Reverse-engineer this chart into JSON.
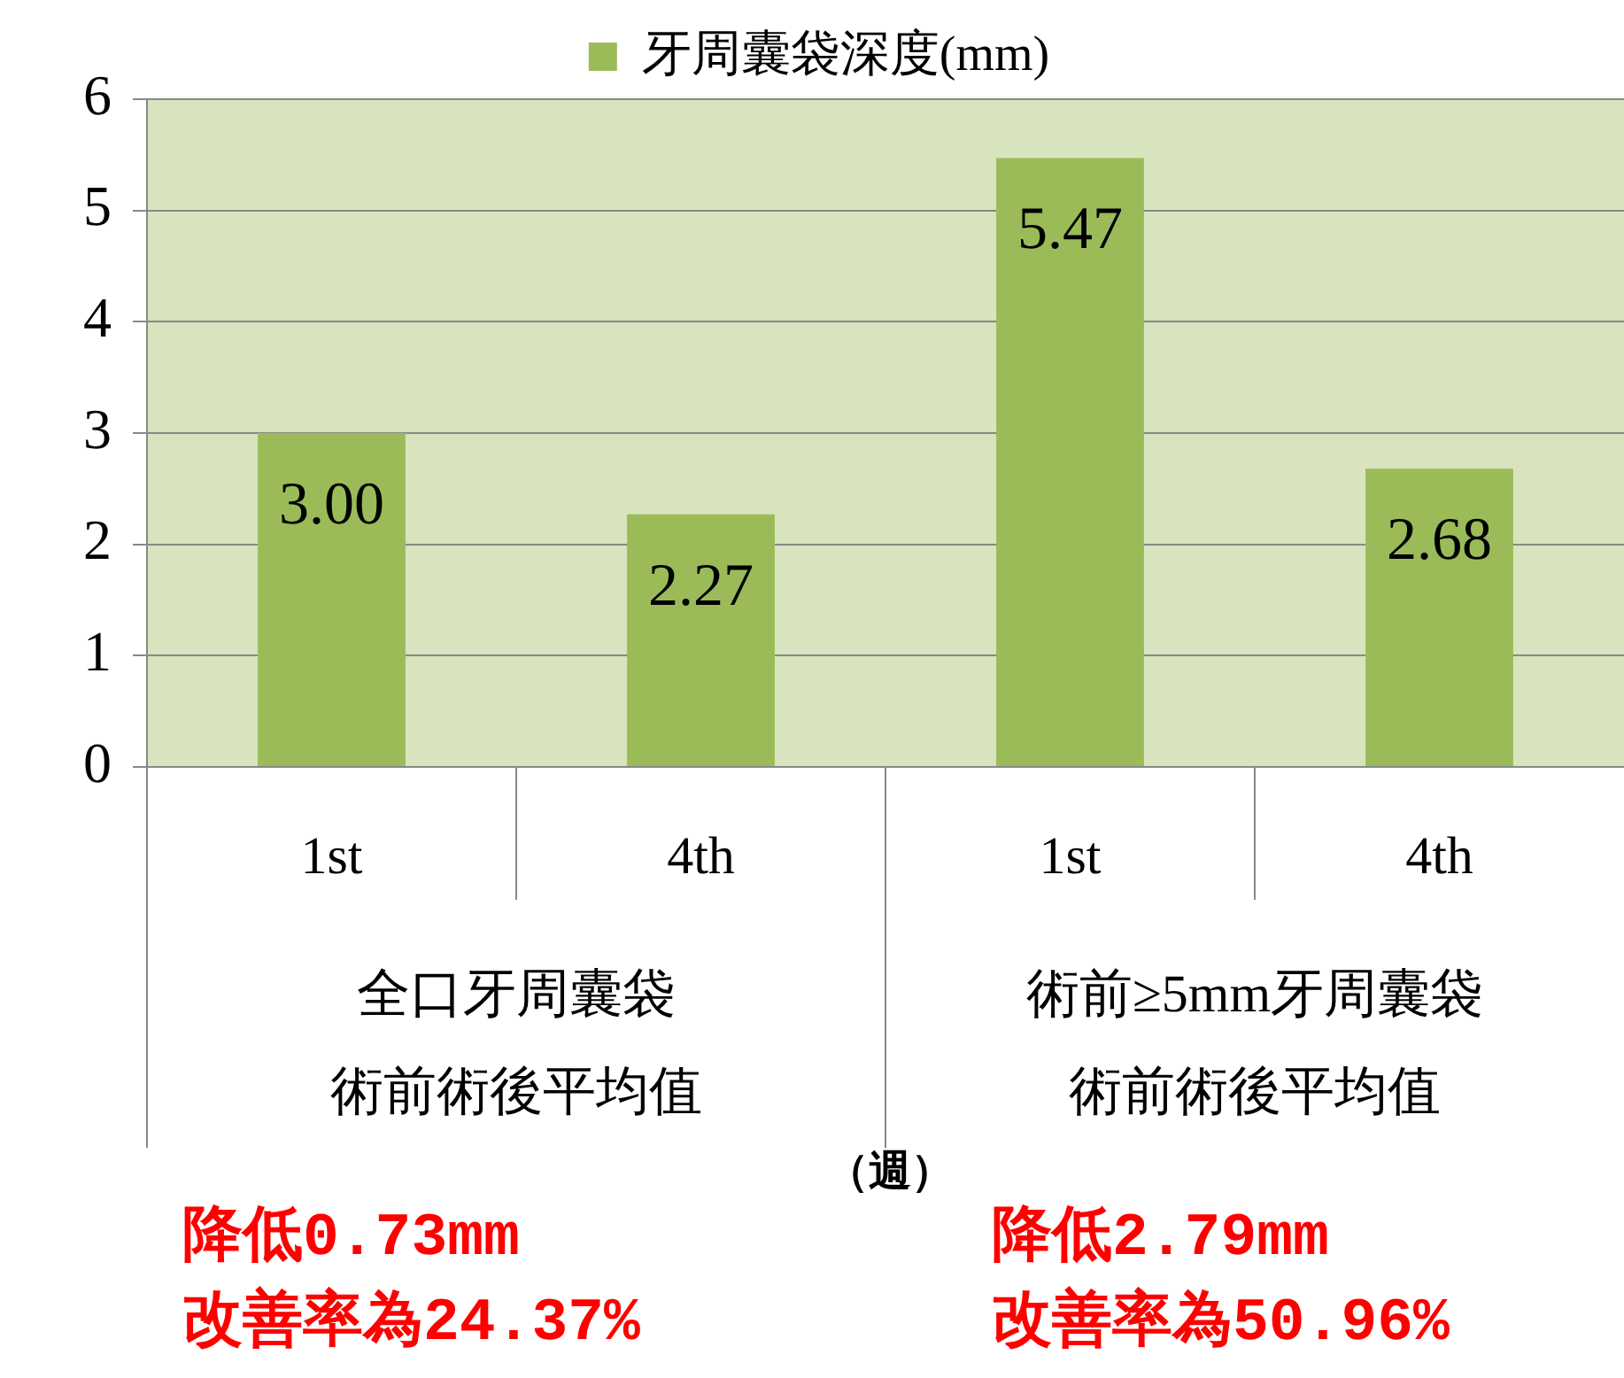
{
  "chart_data": {
    "type": "bar",
    "categories": [
      "1st",
      "4th",
      "1st",
      "4th"
    ],
    "series": [
      {
        "name": "牙周囊袋深度(mm)",
        "color": "#9bbb59",
        "values": [
          3.0,
          2.27,
          5.47,
          2.68
        ],
        "value_labels": [
          "3.00",
          "2.27",
          "5.47",
          "2.68"
        ]
      }
    ],
    "ylim": [
      0,
      6
    ],
    "yticks": [
      0,
      1,
      2,
      3,
      4,
      5,
      6
    ],
    "grid": "y",
    "legend": "top",
    "annotations": [
      "全口牙周囊袋",
      "術前術後平均值",
      "術前≥5mm牙周囊袋",
      "術前術後平均值",
      "（週）",
      "降低0.73mm",
      "改善率為24.37%",
      "降低2.79mm",
      "改善率為50.96%"
    ]
  }
}
